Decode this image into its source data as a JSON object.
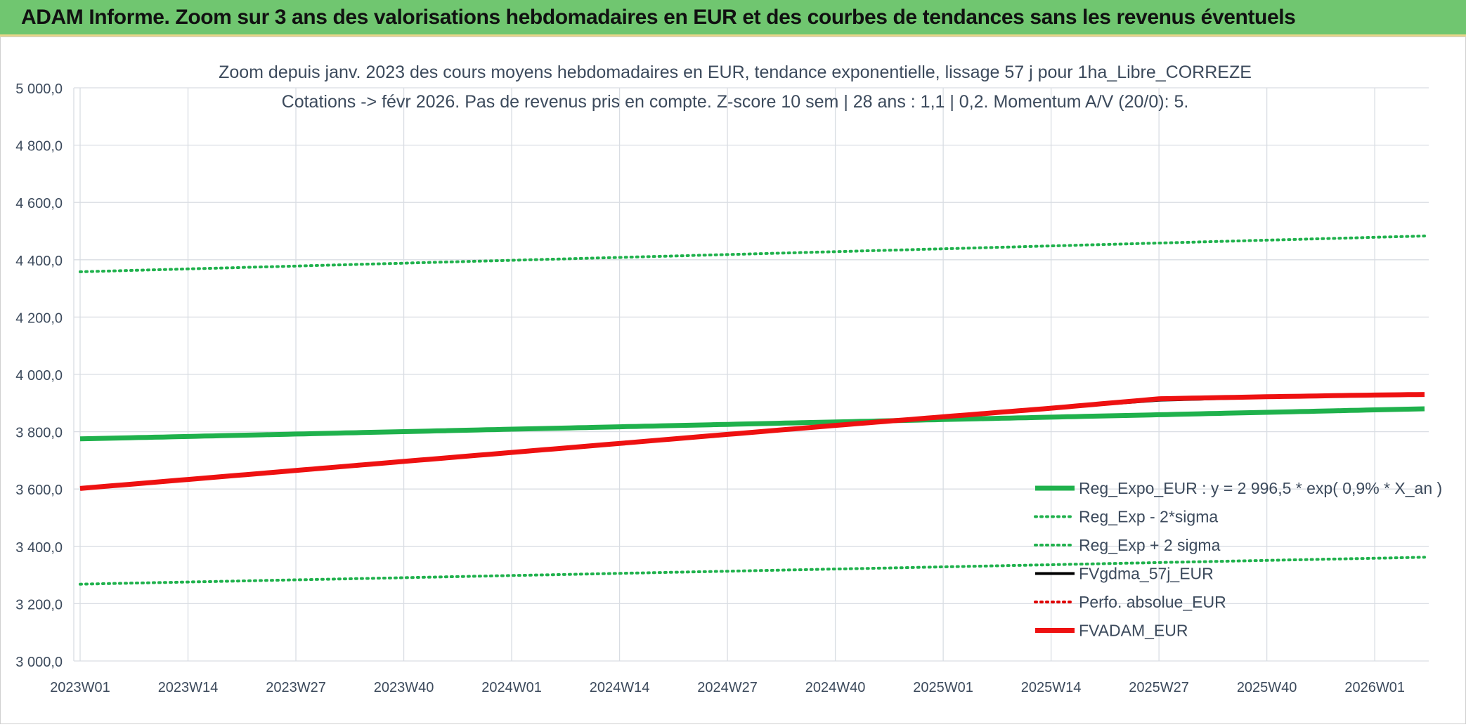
{
  "banner": {
    "title": "ADAM Informe. Zoom sur 3 ans des valorisations hebdomadaires en EUR et des courbes de tendances sans les revenus éventuels"
  },
  "colors": {
    "banner_bg": "#70c670",
    "trend_green": "#1fb14c",
    "sigma_green": "#1fb14c",
    "fvgdma_black": "#000000",
    "perfo_red": "#e00000",
    "fvadam_red": "#ee1111",
    "grid": "#d9dde3"
  },
  "chart_data": {
    "type": "line",
    "title": "Zoom depuis janv. 2023 des cours moyens hebdomadaires en EUR, tendance exponentielle, lissage 57 j pour 1ha_Libre_CORREZE",
    "subtitle": "Cotations -> févr 2026. Pas de revenus pris en compte. Z-score 10 sem | 28 ans : 1,1 | 0,2. Momentum A/V (20/0): 5.",
    "ylim": [
      3000,
      5000
    ],
    "y_ticks": [
      3000,
      3200,
      3400,
      3600,
      3800,
      4000,
      4200,
      4400,
      4600,
      4800,
      5000
    ],
    "y_tick_labels": [
      "3 000,0",
      "3 200,0",
      "3 400,0",
      "3 600,0",
      "3 800,0",
      "4 000,0",
      "4 200,0",
      "4 400,0",
      "4 600,0",
      "4 800,0",
      "5 000,0"
    ],
    "x_ticks": [
      "2023W01",
      "2023W14",
      "2023W27",
      "2023W40",
      "2024W01",
      "2024W14",
      "2024W27",
      "2024W40",
      "2025W01",
      "2025W14",
      "2025W27",
      "2025W40",
      "2026W01"
    ],
    "x_last": "2026W07",
    "grid": true,
    "legend_position": "bottom-right",
    "series": [
      {
        "name": "Reg_Expo_EUR : y = 2 996,5 * exp( 0,9% *  X_an )",
        "style": "solid-thick",
        "color": "#1fb14c",
        "x": [
          "2023W01",
          "2026W07"
        ],
        "y": [
          3775,
          3880
        ]
      },
      {
        "name": "Reg_Exp - 2*sigma",
        "style": "dotted",
        "color": "#1fb14c",
        "x": [
          "2023W01",
          "2026W07"
        ],
        "y": [
          3268,
          3362
        ]
      },
      {
        "name": "Reg_Exp + 2 sigma",
        "style": "dotted",
        "color": "#1fb14c",
        "x": [
          "2023W01",
          "2026W07"
        ],
        "y": [
          4358,
          4483
        ]
      },
      {
        "name": "FVgdma_57j_EUR",
        "style": "solid",
        "color": "#000000",
        "x": [
          "2023W01",
          "2024W40",
          "2025W14",
          "2025W27",
          "2025W40",
          "2026W01",
          "2026W07"
        ],
        "y": [
          3602,
          3822,
          3882,
          3910,
          3920,
          3928,
          3930
        ]
      },
      {
        "name": "Perfo. absolue_EUR",
        "style": "dotted",
        "color": "#e00000",
        "x": [],
        "y": []
      },
      {
        "name": "FVADAM_EUR",
        "style": "solid-thick",
        "color": "#ee1111",
        "x": [
          "2023W01",
          "2024W40",
          "2025W14",
          "2025W27",
          "2025W40",
          "2026W01",
          "2026W07"
        ],
        "y": [
          3602,
          3822,
          3882,
          3915,
          3922,
          3928,
          3930
        ]
      }
    ]
  }
}
